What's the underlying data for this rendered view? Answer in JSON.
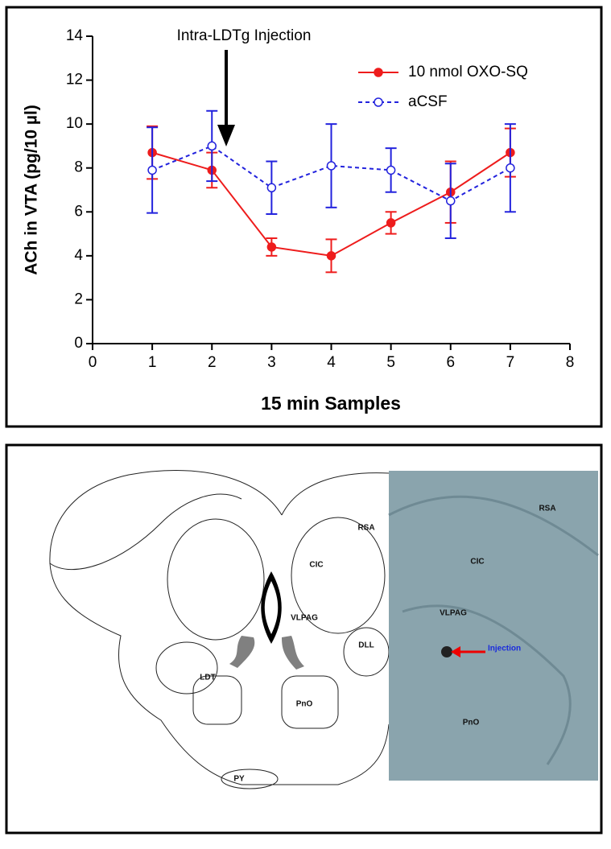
{
  "chart_data": {
    "type": "line",
    "annotation": "Intra-LDTg Injection",
    "xlabel": "15 min Samples",
    "ylabel": "ACh in VTA (pg/10 µl)",
    "x": [
      1,
      2,
      3,
      4,
      5,
      6,
      7
    ],
    "xlim": [
      0,
      8
    ],
    "xticks": [
      0,
      1,
      2,
      3,
      4,
      5,
      6,
      7,
      8
    ],
    "ylim": [
      0,
      14
    ],
    "yticks": [
      0,
      2,
      4,
      6,
      8,
      10,
      12,
      14
    ],
    "series": [
      {
        "name": "10 nmol OXO-SQ",
        "color": "#ee1c1c",
        "marker": "filled",
        "dashed": false,
        "values": [
          8.7,
          7.9,
          4.4,
          4.0,
          5.5,
          6.9,
          8.7
        ],
        "errors": [
          1.2,
          0.8,
          0.4,
          0.75,
          0.5,
          1.4,
          1.1
        ]
      },
      {
        "name": "aCSF",
        "color": "#2222dd",
        "marker": "open",
        "dashed": true,
        "values": [
          7.9,
          9.0,
          7.1,
          8.1,
          7.9,
          6.5,
          8.0
        ],
        "errors": [
          1.95,
          1.6,
          1.2,
          1.9,
          1.0,
          1.7,
          2.0
        ]
      }
    ]
  },
  "brain_panel": {
    "atlas_labels": [
      "RSA",
      "CIC",
      "VLPAG",
      "DLL",
      "LDT",
      "PnO",
      "PY"
    ],
    "photo_labels": [
      "RSA",
      "CIC",
      "VLPAG",
      "PnO"
    ],
    "photo_annotation": "Injection"
  }
}
